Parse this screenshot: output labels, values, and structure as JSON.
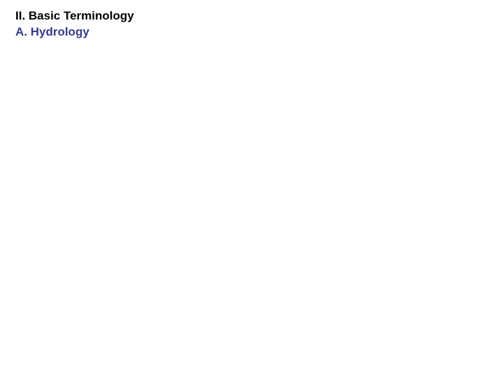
{
  "slide": {
    "heading_1": {
      "text": "II. Basic Terminology",
      "color": "#000000",
      "fontsize": 17
    },
    "heading_2": {
      "text": "A. Hydrology",
      "color": "#3a3a8c",
      "fontsize": 17
    },
    "background_color": "#ffffff"
  }
}
